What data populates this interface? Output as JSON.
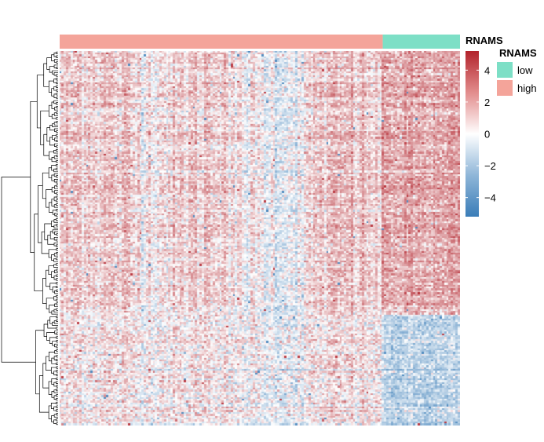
{
  "chart_data": {
    "type": "heatmap",
    "title": "",
    "xlabel": "",
    "ylabel": "",
    "annotation": {
      "name": "RNAMS",
      "column_groups": [
        {
          "label": "high",
          "color": "#F4A49A",
          "fraction": 0.807
        },
        {
          "label": "low",
          "color": "#7DDFC6",
          "fraction": 0.193
        }
      ]
    },
    "colorbar": {
      "ticks": [
        "4",
        "2",
        "0",
        "−2",
        "−4"
      ],
      "tick_values": [
        4,
        2,
        0,
        -2,
        -4
      ],
      "range": [
        -5.2,
        5.2
      ],
      "colors": {
        "low": "#3A7DB8",
        "mid": "#FFFFFF",
        "high": "#B2232C"
      }
    },
    "legend": {
      "title": "RNAMS",
      "entries": [
        {
          "label": "low",
          "color": "#7DDFC6"
        },
        {
          "label": "high",
          "color": "#F4A49A"
        }
      ]
    },
    "row_clusters": [
      {
        "name": "upper",
        "fraction": 0.705,
        "high_group_mean": 0.45,
        "low_group_mean": 1.6
      },
      {
        "name": "lower",
        "fraction": 0.295,
        "high_group_mean": 0.4,
        "low_group_mean": -1.5
      }
    ],
    "n_rows": 200,
    "n_cols": 180,
    "dendrogram": "rows"
  }
}
